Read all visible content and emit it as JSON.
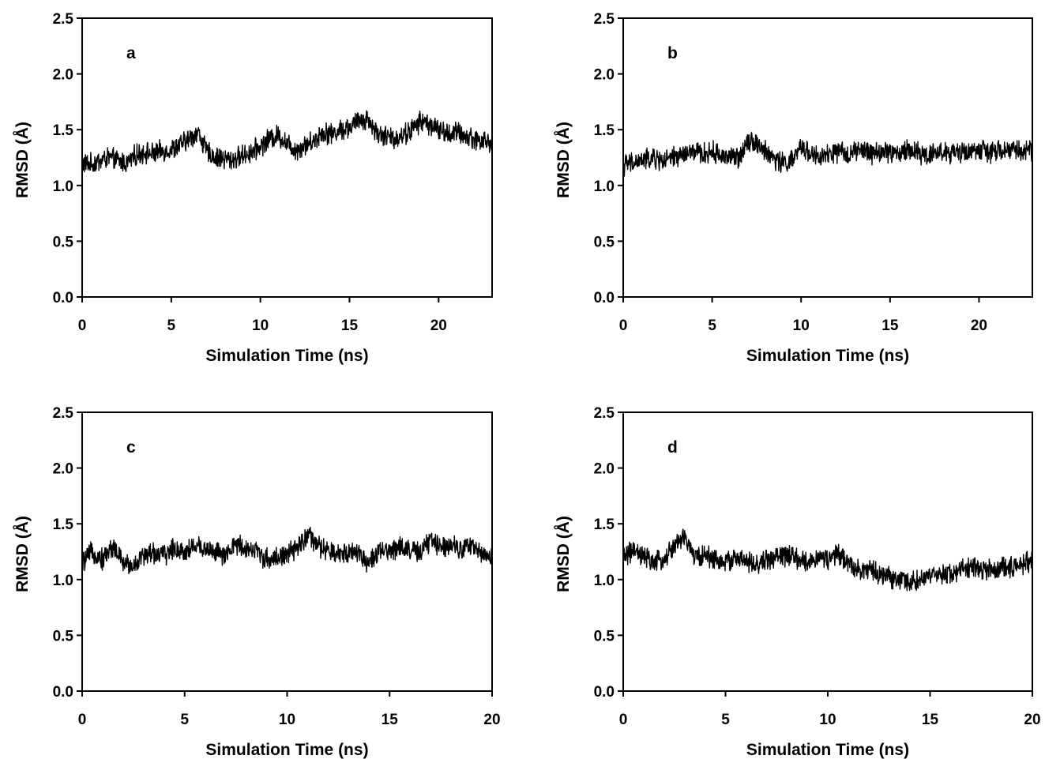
{
  "chart_data": [
    {
      "type": "line",
      "panel_label": "a",
      "xlabel": "Simulation Time (ns)",
      "ylabel": "RMSD (Å)",
      "xlim": [
        0,
        23
      ],
      "ylim": [
        0,
        2.5
      ],
      "xticks": [
        0,
        5,
        10,
        15,
        20
      ],
      "yticks": [
        0.0,
        0.5,
        1.0,
        1.5,
        2.0,
        2.5
      ],
      "ytick_labels": [
        "0.0",
        "0.5",
        "1.0",
        "1.5",
        "2.0",
        "2.5"
      ],
      "grid": false,
      "series": [
        {
          "x": [
            0,
            0.5,
            1,
            1.5,
            2,
            2.5,
            3,
            3.5,
            4,
            4.5,
            5,
            5.5,
            6,
            6.5,
            7,
            7.5,
            8,
            8.5,
            9,
            9.5,
            10,
            10.5,
            11,
            11.5,
            12,
            12.5,
            13,
            13.5,
            14,
            14.5,
            15,
            15.5,
            16,
            16.5,
            17,
            17.5,
            18,
            18.5,
            19,
            19.5,
            20,
            20.5,
            21,
            21.5,
            22,
            22.5,
            23
          ],
          "y": [
            1.2,
            1.19,
            1.22,
            1.25,
            1.22,
            1.2,
            1.27,
            1.3,
            1.28,
            1.31,
            1.32,
            1.36,
            1.42,
            1.48,
            1.3,
            1.25,
            1.24,
            1.23,
            1.27,
            1.3,
            1.35,
            1.42,
            1.45,
            1.38,
            1.32,
            1.36,
            1.4,
            1.48,
            1.46,
            1.5,
            1.52,
            1.58,
            1.6,
            1.48,
            1.44,
            1.42,
            1.45,
            1.5,
            1.58,
            1.55,
            1.5,
            1.46,
            1.48,
            1.44,
            1.42,
            1.4,
            1.38
          ]
        }
      ]
    },
    {
      "type": "line",
      "panel_label": "b",
      "xlabel": "Simulation Time (ns)",
      "ylabel": "RMSD (Å)",
      "xlim": [
        0,
        23
      ],
      "ylim": [
        0,
        2.5
      ],
      "xticks": [
        0,
        5,
        10,
        15,
        20
      ],
      "yticks": [
        0.0,
        0.5,
        1.0,
        1.5,
        2.0,
        2.5
      ],
      "ytick_labels": [
        "0.0",
        "0.5",
        "1.0",
        "1.5",
        "2.0",
        "2.5"
      ],
      "grid": false,
      "series": [
        {
          "x": [
            0,
            0.5,
            1,
            1.5,
            2,
            2.5,
            3,
            3.5,
            4,
            4.5,
            5,
            5.5,
            6,
            6.5,
            7,
            7.5,
            8,
            8.5,
            9,
            9.5,
            10,
            10.5,
            11,
            11.5,
            12,
            12.5,
            13,
            13.5,
            14,
            14.5,
            15,
            15.5,
            16,
            16.5,
            17,
            17.5,
            18,
            18.5,
            19,
            19.5,
            20,
            20.5,
            21,
            21.5,
            22,
            22.5,
            23
          ],
          "y": [
            1.18,
            1.2,
            1.22,
            1.24,
            1.23,
            1.22,
            1.26,
            1.28,
            1.3,
            1.28,
            1.3,
            1.27,
            1.26,
            1.24,
            1.42,
            1.38,
            1.3,
            1.24,
            1.2,
            1.22,
            1.34,
            1.3,
            1.24,
            1.27,
            1.3,
            1.28,
            1.3,
            1.31,
            1.29,
            1.3,
            1.3,
            1.28,
            1.32,
            1.3,
            1.27,
            1.3,
            1.3,
            1.28,
            1.3,
            1.31,
            1.32,
            1.3,
            1.3,
            1.31,
            1.33,
            1.3,
            1.32
          ]
        }
      ]
    },
    {
      "type": "line",
      "panel_label": "c",
      "xlabel": "Simulation Time (ns)",
      "ylabel": "RMSD (Å)",
      "xlim": [
        0,
        20
      ],
      "ylim": [
        0,
        2.5
      ],
      "xticks": [
        0,
        5,
        10,
        15,
        20
      ],
      "yticks": [
        0.0,
        0.5,
        1.0,
        1.5,
        2.0,
        2.5
      ],
      "ytick_labels": [
        "0.0",
        "0.5",
        "1.0",
        "1.5",
        "2.0",
        "2.5"
      ],
      "grid": false,
      "series": [
        {
          "x": [
            0,
            0.5,
            1,
            1.5,
            2,
            2.5,
            3,
            3.5,
            4,
            4.5,
            5,
            5.5,
            6,
            6.5,
            7,
            7.5,
            8,
            8.5,
            9,
            9.5,
            10,
            10.5,
            11,
            11.5,
            12,
            12.5,
            13,
            13.5,
            14,
            14.5,
            15,
            15.5,
            16,
            16.5,
            17,
            17.5,
            18,
            18.5,
            19,
            19.5,
            20
          ],
          "y": [
            1.15,
            1.25,
            1.18,
            1.3,
            1.15,
            1.12,
            1.22,
            1.24,
            1.22,
            1.28,
            1.25,
            1.3,
            1.28,
            1.25,
            1.2,
            1.32,
            1.28,
            1.26,
            1.18,
            1.2,
            1.22,
            1.28,
            1.4,
            1.3,
            1.25,
            1.22,
            1.26,
            1.24,
            1.15,
            1.24,
            1.26,
            1.3,
            1.26,
            1.24,
            1.35,
            1.3,
            1.32,
            1.28,
            1.3,
            1.24,
            1.2
          ]
        }
      ]
    },
    {
      "type": "line",
      "panel_label": "d",
      "xlabel": "Simulation Time (ns)",
      "ylabel": "RMSD (Å)",
      "xlim": [
        0,
        20
      ],
      "ylim": [
        0,
        2.5
      ],
      "xticks": [
        0,
        5,
        10,
        15,
        20
      ],
      "yticks": [
        0.0,
        0.5,
        1.0,
        1.5,
        2.0,
        2.5
      ],
      "ytick_labels": [
        "0.0",
        "0.5",
        "1.0",
        "1.5",
        "2.0",
        "2.5"
      ],
      "grid": false,
      "series": [
        {
          "x": [
            0,
            0.5,
            1,
            1.5,
            2,
            2.5,
            3,
            3.5,
            4,
            4.5,
            5,
            5.5,
            6,
            6.5,
            7,
            7.5,
            8,
            8.5,
            9,
            9.5,
            10,
            10.5,
            11,
            11.5,
            12,
            12.5,
            13,
            13.5,
            14,
            14.5,
            15,
            15.5,
            16,
            16.5,
            17,
            17.5,
            18,
            18.5,
            19,
            19.5,
            20
          ],
          "y": [
            1.22,
            1.25,
            1.2,
            1.15,
            1.18,
            1.3,
            1.38,
            1.2,
            1.22,
            1.18,
            1.15,
            1.2,
            1.16,
            1.12,
            1.18,
            1.2,
            1.22,
            1.18,
            1.15,
            1.2,
            1.18,
            1.22,
            1.15,
            1.1,
            1.08,
            1.05,
            1.02,
            1.0,
            0.98,
            1.0,
            1.02,
            1.04,
            1.06,
            1.08,
            1.12,
            1.1,
            1.08,
            1.1,
            1.12,
            1.14,
            1.16
          ]
        }
      ]
    }
  ]
}
